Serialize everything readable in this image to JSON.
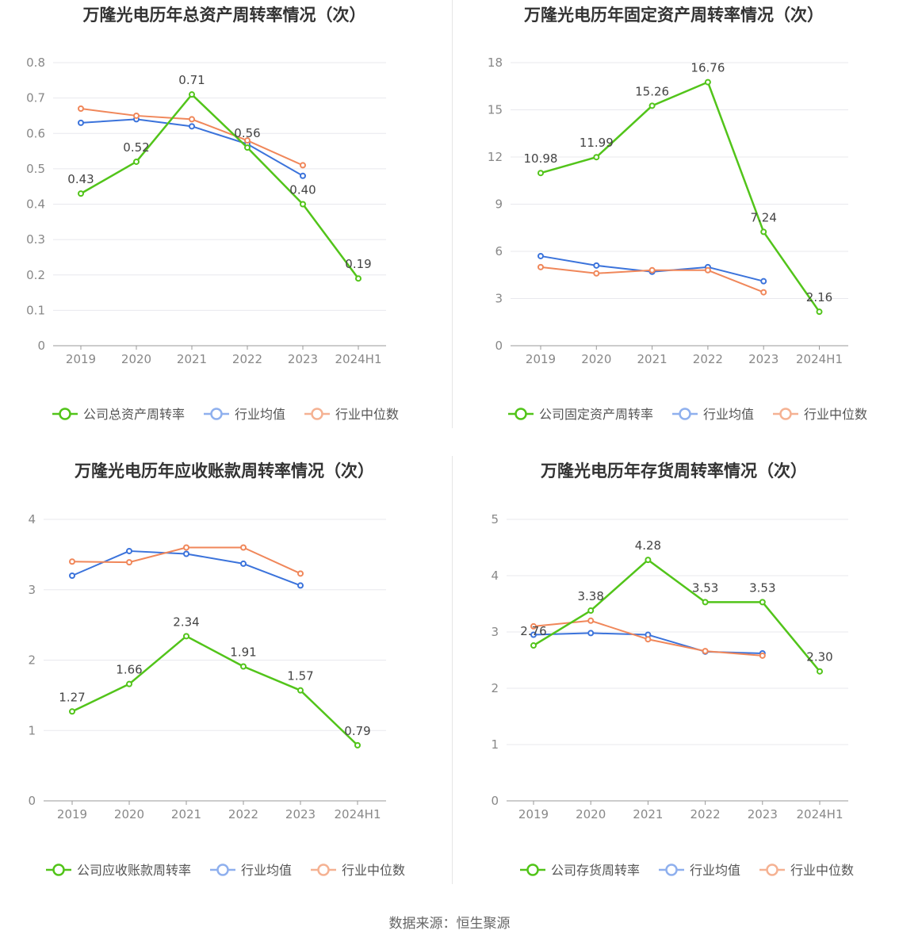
{
  "source_label": "数据来源：恒生聚源",
  "colors": {
    "company": "#52c41a",
    "avg": "#3b73db",
    "median": "#f0875a"
  },
  "chart_data": [
    {
      "type": "line",
      "title": "万隆光电历年总资产周转率情况（次）",
      "categories": [
        "2019",
        "2020",
        "2021",
        "2022",
        "2023",
        "2024H1"
      ],
      "ylim": [
        0,
        0.8
      ],
      "yticks": [
        "0",
        "0.1",
        "0.2",
        "0.3",
        "0.4",
        "0.5",
        "0.6",
        "0.7",
        "0.8"
      ],
      "series": [
        {
          "name": "公司总资产周转率",
          "key": "company",
          "values": [
            0.43,
            0.52,
            0.71,
            0.56,
            0.4,
            0.19
          ],
          "labels": [
            "0.43",
            "0.52",
            "0.71",
            "0.56",
            "0.40",
            "0.19"
          ]
        },
        {
          "name": "行业均值",
          "key": "avg",
          "values": [
            0.63,
            0.64,
            0.62,
            0.57,
            0.48,
            null
          ]
        },
        {
          "name": "行业中位数",
          "key": "median",
          "values": [
            0.67,
            0.65,
            0.64,
            0.58,
            0.51,
            null
          ]
        }
      ],
      "legend": "bottom"
    },
    {
      "type": "line",
      "title": "万隆光电历年固定资产周转率情况（次）",
      "categories": [
        "2019",
        "2020",
        "2021",
        "2022",
        "2023",
        "2024H1"
      ],
      "ylim": [
        0,
        18
      ],
      "yticks": [
        "0",
        "3",
        "6",
        "9",
        "12",
        "15",
        "18"
      ],
      "series": [
        {
          "name": "公司固定资产周转率",
          "key": "company",
          "values": [
            10.98,
            11.99,
            15.26,
            16.76,
            7.24,
            2.16
          ],
          "labels": [
            "10.98",
            "11.99",
            "15.26",
            "16.76",
            "7.24",
            "2.16"
          ]
        },
        {
          "name": "行业均值",
          "key": "avg",
          "values": [
            5.7,
            5.1,
            4.7,
            5.0,
            4.1,
            null
          ]
        },
        {
          "name": "行业中位数",
          "key": "median",
          "values": [
            5.0,
            4.6,
            4.8,
            4.8,
            3.4,
            null
          ]
        }
      ],
      "legend": "bottom"
    },
    {
      "type": "line",
      "title": "万隆光电历年应收账款周转率情况（次）",
      "categories": [
        "2019",
        "2020",
        "2021",
        "2022",
        "2023",
        "2024H1"
      ],
      "ylim": [
        0,
        4
      ],
      "yticks": [
        "0",
        "1",
        "2",
        "3",
        "4"
      ],
      "series": [
        {
          "name": "公司应收账款周转率",
          "key": "company",
          "values": [
            1.27,
            1.66,
            2.34,
            1.91,
            1.57,
            0.79
          ],
          "labels": [
            "1.27",
            "1.66",
            "2.34",
            "1.91",
            "1.57",
            "0.79"
          ]
        },
        {
          "name": "行业均值",
          "key": "avg",
          "values": [
            3.2,
            3.55,
            3.51,
            3.37,
            3.06,
            null
          ]
        },
        {
          "name": "行业中位数",
          "key": "median",
          "values": [
            3.4,
            3.39,
            3.6,
            3.6,
            3.23,
            null
          ]
        }
      ],
      "legend": "bottom"
    },
    {
      "type": "line",
      "title": "万隆光电历年存货周转率情况（次）",
      "categories": [
        "2019",
        "2020",
        "2021",
        "2022",
        "2023",
        "2024H1"
      ],
      "ylim": [
        0,
        5
      ],
      "yticks": [
        "0",
        "1",
        "2",
        "3",
        "4",
        "5"
      ],
      "series": [
        {
          "name": "公司存货周转率",
          "key": "company",
          "values": [
            2.76,
            3.38,
            4.28,
            3.53,
            3.53,
            2.3
          ],
          "labels": [
            "2.76",
            "3.38",
            "4.28",
            "3.53",
            "3.53",
            "2.30"
          ]
        },
        {
          "name": "行业均值",
          "key": "avg",
          "values": [
            2.95,
            2.98,
            2.95,
            2.65,
            2.62,
            null
          ]
        },
        {
          "name": "行业中位数",
          "key": "median",
          "values": [
            3.1,
            3.2,
            2.87,
            2.66,
            2.58,
            null
          ]
        }
      ],
      "legend": "bottom"
    }
  ]
}
